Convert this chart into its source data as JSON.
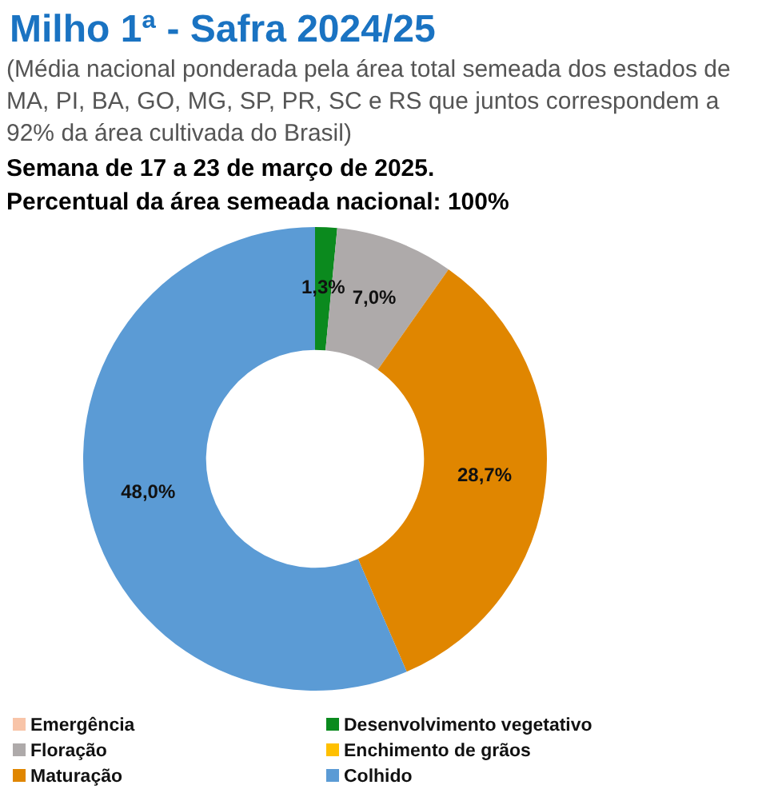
{
  "chart_data": {
    "type": "donut",
    "title": "Milho 1ª - Safra 2024/25",
    "subtitle": "(Média nacional ponderada pela área total semeada dos estados de MA, PI, BA, GO, MG, SP, PR, SC e RS que juntos correspondem a 92% da área cultivada do Brasil)",
    "annotations": [
      "Semana de 17 a 23 de março de 2025.",
      "Percentual da área semeada nacional: 100%"
    ],
    "categories": [
      "Emergência",
      "Desenvolvimento vegetativo",
      "Floração",
      "Enchimento de grãos",
      "Maturação",
      "Colhido"
    ],
    "values": [
      0,
      1.3,
      7.0,
      0,
      28.7,
      48.0
    ],
    "value_labels": [
      null,
      "1,3%",
      "7,0%",
      null,
      "28,7%",
      "48,0%"
    ],
    "colors": [
      "#f8c4a8",
      "#0b8a1e",
      "#aeaaaa",
      "#ffc000",
      "#e08600",
      "#5b9bd5"
    ],
    "legend": "bottom"
  }
}
